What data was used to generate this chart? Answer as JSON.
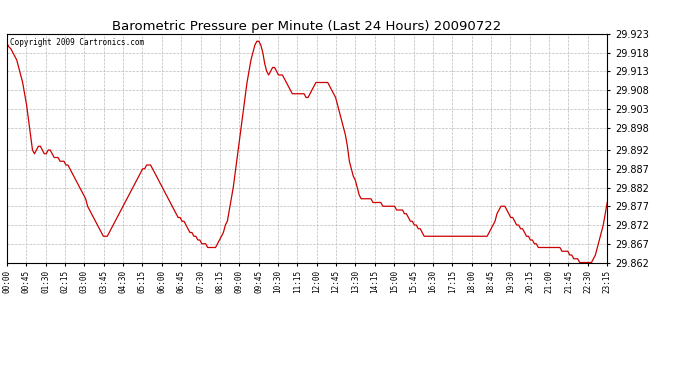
{
  "title": "Barometric Pressure per Minute (Last 24 Hours) 20090722",
  "copyright": "Copyright 2009 Cartronics.com",
  "line_color": "#cc0000",
  "bg_color": "#ffffff",
  "plot_bg_color": "#ffffff",
  "grid_color": "#bbbbbb",
  "y_min": 29.862,
  "y_max": 29.923,
  "y_ticks": [
    29.862,
    29.867,
    29.872,
    29.877,
    29.882,
    29.887,
    29.892,
    29.898,
    29.903,
    29.908,
    29.913,
    29.918,
    29.923
  ],
  "x_tick_labels": [
    "00:00",
    "00:45",
    "01:30",
    "02:15",
    "03:00",
    "03:45",
    "04:30",
    "05:15",
    "06:00",
    "06:45",
    "07:30",
    "08:15",
    "09:00",
    "09:45",
    "10:30",
    "11:15",
    "12:00",
    "12:45",
    "13:30",
    "14:15",
    "15:00",
    "15:45",
    "16:30",
    "17:15",
    "18:00",
    "18:45",
    "19:30",
    "20:15",
    "21:00",
    "21:45",
    "22:30",
    "23:15"
  ],
  "data_points": [
    29.9205,
    29.9195,
    29.919,
    29.918,
    29.917,
    29.916,
    29.914,
    29.912,
    29.91,
    29.907,
    29.904,
    29.9,
    29.896,
    29.892,
    29.891,
    29.892,
    29.893,
    29.893,
    29.892,
    29.891,
    29.891,
    29.892,
    29.892,
    29.891,
    29.89,
    29.89,
    29.89,
    29.889,
    29.889,
    29.889,
    29.888,
    29.888,
    29.887,
    29.886,
    29.885,
    29.884,
    29.883,
    29.882,
    29.881,
    29.88,
    29.879,
    29.877,
    29.876,
    29.875,
    29.874,
    29.873,
    29.872,
    29.871,
    29.87,
    29.869,
    29.869,
    29.869,
    29.87,
    29.871,
    29.872,
    29.873,
    29.874,
    29.875,
    29.876,
    29.877,
    29.878,
    29.879,
    29.88,
    29.881,
    29.882,
    29.883,
    29.884,
    29.885,
    29.886,
    29.887,
    29.887,
    29.888,
    29.888,
    29.888,
    29.887,
    29.886,
    29.885,
    29.884,
    29.883,
    29.882,
    29.881,
    29.88,
    29.879,
    29.878,
    29.877,
    29.876,
    29.875,
    29.874,
    29.874,
    29.873,
    29.873,
    29.872,
    29.871,
    29.87,
    29.87,
    29.869,
    29.869,
    29.868,
    29.868,
    29.867,
    29.867,
    29.867,
    29.866,
    29.866,
    29.866,
    29.866,
    29.866,
    29.867,
    29.868,
    29.869,
    29.87,
    29.872,
    29.873,
    29.876,
    29.879,
    29.882,
    29.886,
    29.89,
    29.894,
    29.898,
    29.902,
    29.906,
    29.91,
    29.913,
    29.916,
    29.918,
    29.92,
    29.921,
    29.921,
    29.92,
    29.918,
    29.915,
    29.913,
    29.912,
    29.913,
    29.914,
    29.914,
    29.913,
    29.912,
    29.912,
    29.912,
    29.911,
    29.91,
    29.909,
    29.908,
    29.907,
    29.907,
    29.907,
    29.907,
    29.907,
    29.907,
    29.907,
    29.906,
    29.906,
    29.907,
    29.908,
    29.909,
    29.91,
    29.91,
    29.91,
    29.91,
    29.91,
    29.91,
    29.91,
    29.909,
    29.908,
    29.907,
    29.906,
    29.904,
    29.902,
    29.9,
    29.898,
    29.896,
    29.893,
    29.889,
    29.887,
    29.885,
    29.884,
    29.882,
    29.88,
    29.879,
    29.879,
    29.879,
    29.879,
    29.879,
    29.879,
    29.878,
    29.878,
    29.878,
    29.878,
    29.878,
    29.877,
    29.877,
    29.877,
    29.877,
    29.877,
    29.877,
    29.877,
    29.876,
    29.876,
    29.876,
    29.876,
    29.875,
    29.875,
    29.874,
    29.873,
    29.873,
    29.872,
    29.872,
    29.871,
    29.871,
    29.87,
    29.869,
    29.869,
    29.869,
    29.869,
    29.869,
    29.869,
    29.869,
    29.869,
    29.869,
    29.869,
    29.869,
    29.869,
    29.869,
    29.869,
    29.869,
    29.869,
    29.869,
    29.869,
    29.869,
    29.869,
    29.869,
    29.869,
    29.869,
    29.869,
    29.869,
    29.869,
    29.869,
    29.869,
    29.869,
    29.869,
    29.869,
    29.869,
    29.869,
    29.87,
    29.871,
    29.872,
    29.873,
    29.875,
    29.876,
    29.877,
    29.877,
    29.877,
    29.876,
    29.875,
    29.874,
    29.874,
    29.873,
    29.872,
    29.872,
    29.871,
    29.871,
    29.87,
    29.869,
    29.869,
    29.868,
    29.868,
    29.867,
    29.867,
    29.866,
    29.866,
    29.866,
    29.866,
    29.866,
    29.866,
    29.866,
    29.866,
    29.866,
    29.866,
    29.866,
    29.866,
    29.865,
    29.865,
    29.865,
    29.865,
    29.864,
    29.864,
    29.863,
    29.863,
    29.863,
    29.862,
    29.862,
    29.862,
    29.862,
    29.862,
    29.862,
    29.862,
    29.863,
    29.864,
    29.866,
    29.868,
    29.87,
    29.872,
    29.875,
    29.878
  ]
}
